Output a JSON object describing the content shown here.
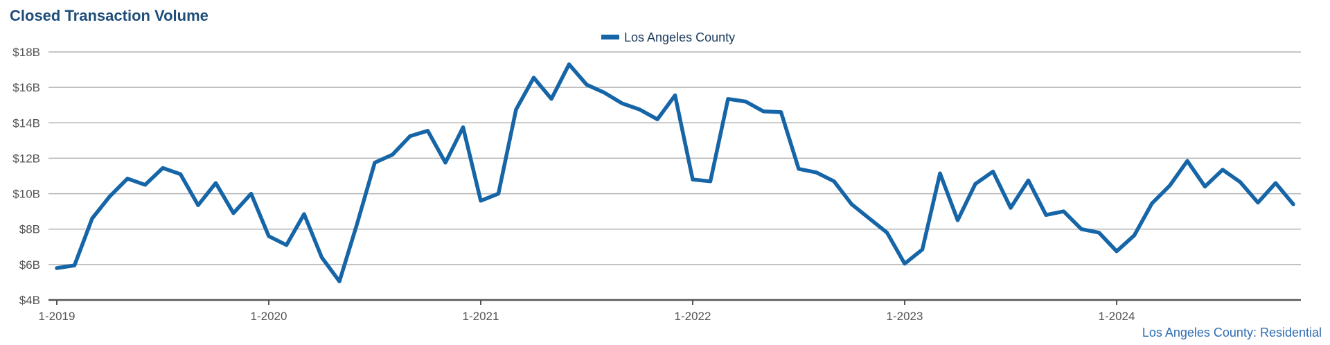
{
  "colors": {
    "title": "#1f4e79",
    "series": "#1565a7",
    "grid": "#b3b3b3",
    "axis": "#555555",
    "tick_text": "#555555",
    "footnote": "#2e6db3"
  },
  "chart_data": {
    "type": "line",
    "title": "Closed Transaction Volume",
    "subtitle": "",
    "xlabel": "",
    "ylabel": "",
    "footnote": "Los Angeles County: Residential",
    "legend_position": "top-center",
    "grid": true,
    "x_tick_labels": [
      "1-2019",
      "1-2020",
      "1-2021",
      "1-2022",
      "1-2023",
      "1-2024"
    ],
    "y_ticks": [
      4,
      6,
      8,
      10,
      12,
      14,
      16,
      18
    ],
    "y_tick_labels": [
      "$4B",
      "$6B",
      "$8B",
      "$10B",
      "$12B",
      "$14B",
      "$16B",
      "$18B"
    ],
    "ylim": [
      4,
      18
    ],
    "x": [
      "2019-01",
      "2019-02",
      "2019-03",
      "2019-04",
      "2019-05",
      "2019-06",
      "2019-07",
      "2019-08",
      "2019-09",
      "2019-10",
      "2019-11",
      "2019-12",
      "2020-01",
      "2020-02",
      "2020-03",
      "2020-04",
      "2020-05",
      "2020-06",
      "2020-07",
      "2020-08",
      "2020-09",
      "2020-10",
      "2020-11",
      "2020-12",
      "2021-01",
      "2021-02",
      "2021-03",
      "2021-04",
      "2021-05",
      "2021-06",
      "2021-07",
      "2021-08",
      "2021-09",
      "2021-10",
      "2021-11",
      "2021-12",
      "2022-01",
      "2022-02",
      "2022-03",
      "2022-04",
      "2022-05",
      "2022-06",
      "2022-07",
      "2022-08",
      "2022-09",
      "2022-10",
      "2022-11",
      "2022-12",
      "2023-01",
      "2023-02",
      "2023-03",
      "2023-04",
      "2023-05",
      "2023-06",
      "2023-07",
      "2023-08",
      "2023-09",
      "2023-10",
      "2023-11",
      "2023-12",
      "2024-01",
      "2024-02",
      "2024-03",
      "2024-04",
      "2024-05",
      "2024-06",
      "2024-07",
      "2024-08",
      "2024-09",
      "2024-10",
      "2024-11"
    ],
    "series": [
      {
        "name": "Los Angeles County",
        "values": [
          5.8,
          5.95,
          8.6,
          9.85,
          10.85,
          10.5,
          11.45,
          11.1,
          9.35,
          10.6,
          8.9,
          10.0,
          7.6,
          7.1,
          8.85,
          6.4,
          5.05,
          8.3,
          11.75,
          12.2,
          13.25,
          13.55,
          11.75,
          13.75,
          9.6,
          10.0,
          14.75,
          16.55,
          15.35,
          17.3,
          16.15,
          15.7,
          15.1,
          14.75,
          14.2,
          15.55,
          10.8,
          10.7,
          15.35,
          15.2,
          14.65,
          14.6,
          11.4,
          11.2,
          10.7,
          9.4,
          8.6,
          7.8,
          6.05,
          6.85,
          11.15,
          8.5,
          10.55,
          11.25,
          9.2,
          10.75,
          8.8,
          9.0,
          8.0,
          7.8,
          6.75,
          7.65,
          9.45,
          10.45,
          11.85,
          10.4,
          11.35,
          10.65,
          9.5,
          10.6,
          9.4
        ]
      }
    ]
  }
}
